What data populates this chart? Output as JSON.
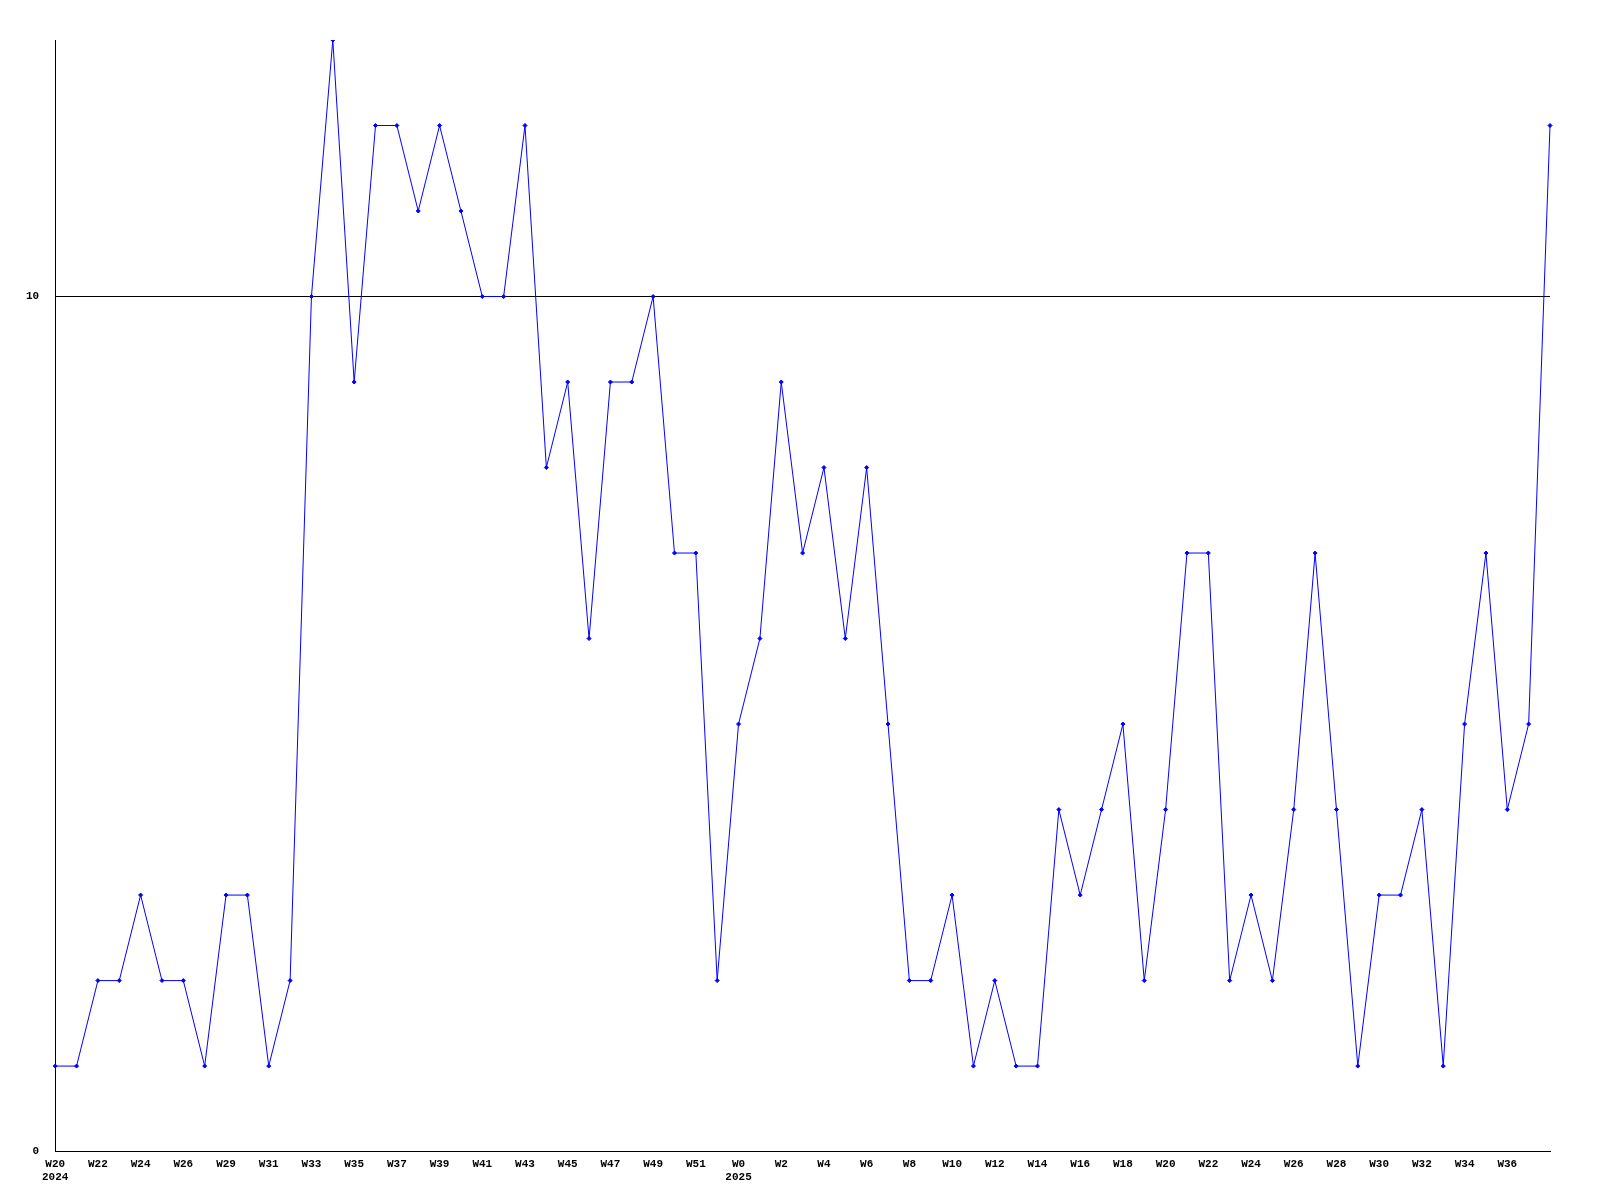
{
  "chart_data": {
    "type": "line",
    "categories": [
      "W20\n2024",
      null,
      "W22",
      null,
      "W24",
      null,
      "W26",
      null,
      "W29",
      null,
      "W31",
      null,
      "W33",
      null,
      "W35",
      null,
      "W37",
      null,
      "W39",
      null,
      "W41",
      null,
      "W43",
      null,
      "W45",
      null,
      "W47",
      null,
      "W49",
      null,
      "W51",
      null,
      "W0\n2025",
      null,
      "W2",
      null,
      "W4",
      null,
      "W6",
      null,
      "W8",
      null,
      "W10",
      null,
      "W12",
      null,
      "W14",
      null,
      "W16",
      null,
      "W18",
      null,
      "W20",
      null,
      "W22",
      null,
      "W24",
      null,
      "W26",
      null,
      "W28",
      null,
      "W30",
      null,
      "W32",
      null,
      "W34",
      null,
      "W36",
      null,
      null
    ],
    "series": [
      {
        "color": "#0000ff",
        "values": [
          1,
          1,
          2,
          2,
          3,
          2,
          2,
          1,
          3,
          3,
          1,
          2,
          10,
          13,
          9,
          12,
          12,
          11,
          12,
          11,
          10,
          10,
          12,
          8,
          9,
          6,
          9,
          9,
          10,
          7,
          7,
          2,
          5,
          6,
          9,
          7,
          8,
          6,
          8,
          5,
          2,
          2,
          3,
          1,
          2,
          1,
          1,
          4,
          3,
          4,
          5,
          2,
          4,
          7,
          7,
          2,
          3,
          2,
          4,
          7,
          4,
          1,
          3,
          3,
          4,
          1,
          5,
          7,
          4,
          5,
          12
        ]
      }
    ],
    "ylim": [
      0,
      13
    ],
    "yticks": [
      0,
      10
    ],
    "grid": "y",
    "legend": false,
    "marker": "diamond",
    "line_style": "solid"
  }
}
